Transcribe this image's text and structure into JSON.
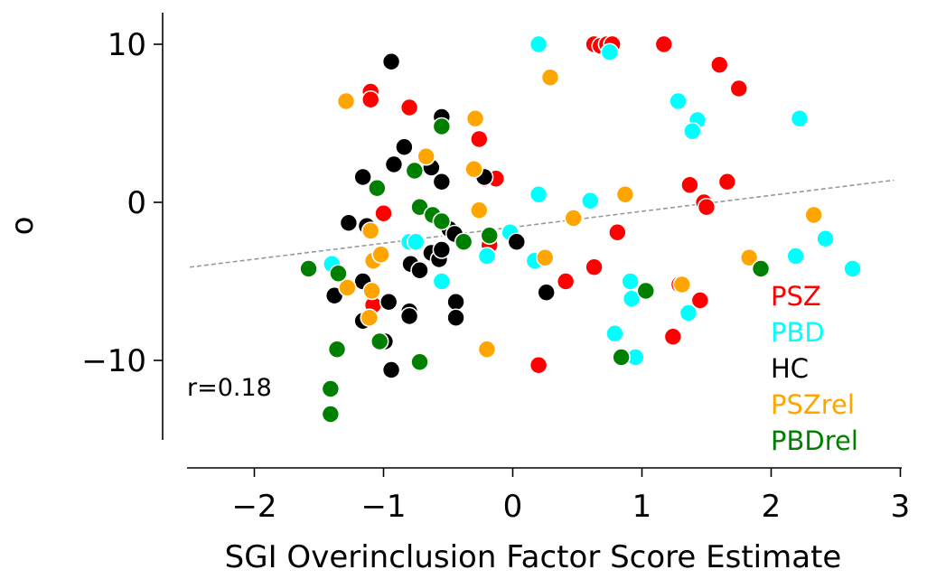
{
  "chart_data": {
    "type": "scatter",
    "title": "",
    "xlabel": "SGI Overinclusion Factor Score Estimate",
    "ylabel": "o",
    "xlim": [
      -2.5,
      2.95
    ],
    "ylim": [
      -15,
      12
    ],
    "x_ticks": [
      -2,
      -1,
      0,
      1,
      2,
      3
    ],
    "y_ticks": [
      -10,
      0,
      10
    ],
    "x_tick_labels": [
      "−2",
      "−1",
      "0",
      "1",
      "2",
      "3"
    ],
    "y_tick_labels": [
      "−10",
      "0",
      "10"
    ],
    "legend_position": "lower-right",
    "annotation": "r=0.18",
    "trend_line": {
      "x": [
        -2.5,
        2.95
      ],
      "y": [
        -4.1,
        1.4
      ],
      "color": "#999999",
      "style": "dashed"
    },
    "series": [
      {
        "name": "PSZ",
        "color": "#ff0000",
        "points": [
          [
            -1.1,
            7.0
          ],
          [
            -1.1,
            6.5
          ],
          [
            -0.8,
            6.0
          ],
          [
            -0.26,
            4.0
          ],
          [
            -0.22,
            1.5
          ],
          [
            -0.13,
            1.5
          ],
          [
            -1.0,
            -0.7
          ],
          [
            -1.08,
            -6.5
          ],
          [
            -0.18,
            -2.7
          ],
          [
            0.2,
            -10.3
          ],
          [
            0.41,
            -5.0
          ],
          [
            0.63,
            10.0
          ],
          [
            0.68,
            9.9
          ],
          [
            0.73,
            10.0
          ],
          [
            0.77,
            10.0
          ],
          [
            1.17,
            10.0
          ],
          [
            1.6,
            8.7
          ],
          [
            1.75,
            7.2
          ],
          [
            1.37,
            1.1
          ],
          [
            1.66,
            1.3
          ],
          [
            1.48,
            0.0
          ],
          [
            1.5,
            -0.3
          ],
          [
            0.81,
            -1.9
          ],
          [
            0.63,
            -4.1
          ],
          [
            1.29,
            -5.2
          ],
          [
            1.24,
            -8.5
          ],
          [
            1.45,
            -6.2
          ]
        ]
      },
      {
        "name": "PBD",
        "color": "#00ffff",
        "points": [
          [
            0.2,
            10.0
          ],
          [
            0.75,
            9.5
          ],
          [
            1.28,
            6.4
          ],
          [
            1.43,
            5.2
          ],
          [
            1.39,
            4.5
          ],
          [
            2.22,
            5.3
          ],
          [
            0.2,
            0.5
          ],
          [
            0.6,
            0.1
          ],
          [
            0.17,
            -3.7
          ],
          [
            -0.02,
            -1.9
          ],
          [
            -0.2,
            -3.4
          ],
          [
            -0.5,
            -1.7
          ],
          [
            -0.8,
            -2.5
          ],
          [
            -0.75,
            -2.5
          ],
          [
            -0.55,
            -5.0
          ],
          [
            -1.4,
            -3.9
          ],
          [
            0.91,
            -5.0
          ],
          [
            0.92,
            -6.1
          ],
          [
            0.79,
            -8.3
          ],
          [
            0.95,
            -9.8
          ],
          [
            1.36,
            -7.0
          ],
          [
            2.19,
            -3.4
          ],
          [
            2.42,
            -2.3
          ],
          [
            2.63,
            -4.2
          ]
        ]
      },
      {
        "name": "HC",
        "color": "#000000",
        "points": [
          [
            -0.94,
            8.9
          ],
          [
            -0.55,
            5.4
          ],
          [
            -0.84,
            3.5
          ],
          [
            -0.92,
            2.4
          ],
          [
            -0.63,
            2.2
          ],
          [
            -0.55,
            1.3
          ],
          [
            -1.16,
            1.6
          ],
          [
            -0.22,
            1.6
          ],
          [
            -1.27,
            -1.3
          ],
          [
            -1.13,
            -1.5
          ],
          [
            -0.49,
            -1.7
          ],
          [
            -0.45,
            -2.0
          ],
          [
            -0.63,
            -3.2
          ],
          [
            -0.79,
            -3.9
          ],
          [
            -0.72,
            -4.3
          ],
          [
            -0.57,
            -3.6
          ],
          [
            -0.55,
            -3.0
          ],
          [
            0.03,
            -2.5
          ],
          [
            -1.38,
            -5.9
          ],
          [
            -1.16,
            -5.0
          ],
          [
            -1.16,
            -7.5
          ],
          [
            -0.96,
            -6.3
          ],
          [
            -0.8,
            -6.9
          ],
          [
            -0.8,
            -7.2
          ],
          [
            -0.44,
            -6.3
          ],
          [
            -0.44,
            -7.3
          ],
          [
            -0.99,
            -8.8
          ],
          [
            -0.94,
            -10.6
          ],
          [
            0.26,
            -5.7
          ]
        ]
      },
      {
        "name": "PSZrel",
        "color": "#ffa500",
        "points": [
          [
            -1.29,
            6.4
          ],
          [
            0.29,
            7.9
          ],
          [
            -0.29,
            5.3
          ],
          [
            -0.67,
            2.9
          ],
          [
            -0.3,
            2.1
          ],
          [
            -1.1,
            -1.8
          ],
          [
            -1.08,
            -3.7
          ],
          [
            -1.02,
            -3.3
          ],
          [
            -1.28,
            -5.4
          ],
          [
            -1.09,
            -5.6
          ],
          [
            -1.11,
            -7.3
          ],
          [
            -0.26,
            -0.5
          ],
          [
            0.47,
            -1.0
          ],
          [
            0.87,
            0.5
          ],
          [
            0.25,
            -3.5
          ],
          [
            -0.2,
            -9.3
          ],
          [
            1.31,
            -5.2
          ],
          [
            1.83,
            -3.5
          ],
          [
            2.33,
            -0.8
          ]
        ]
      },
      {
        "name": "PBDrel",
        "color": "#008000",
        "points": [
          [
            -0.55,
            4.8
          ],
          [
            -0.76,
            2.0
          ],
          [
            -1.05,
            0.9
          ],
          [
            -0.72,
            -0.3
          ],
          [
            -0.62,
            -0.8
          ],
          [
            -0.55,
            -1.2
          ],
          [
            -0.38,
            -2.5
          ],
          [
            -0.18,
            -2.1
          ],
          [
            -1.58,
            -4.2
          ],
          [
            -1.35,
            -4.5
          ],
          [
            -1.36,
            -9.3
          ],
          [
            -1.41,
            -11.8
          ],
          [
            -1.41,
            -13.4
          ],
          [
            -1.03,
            -8.8
          ],
          [
            -0.72,
            -10.1
          ],
          [
            0.84,
            -9.8
          ],
          [
            1.03,
            -5.6
          ],
          [
            1.92,
            -4.2
          ]
        ]
      }
    ]
  }
}
